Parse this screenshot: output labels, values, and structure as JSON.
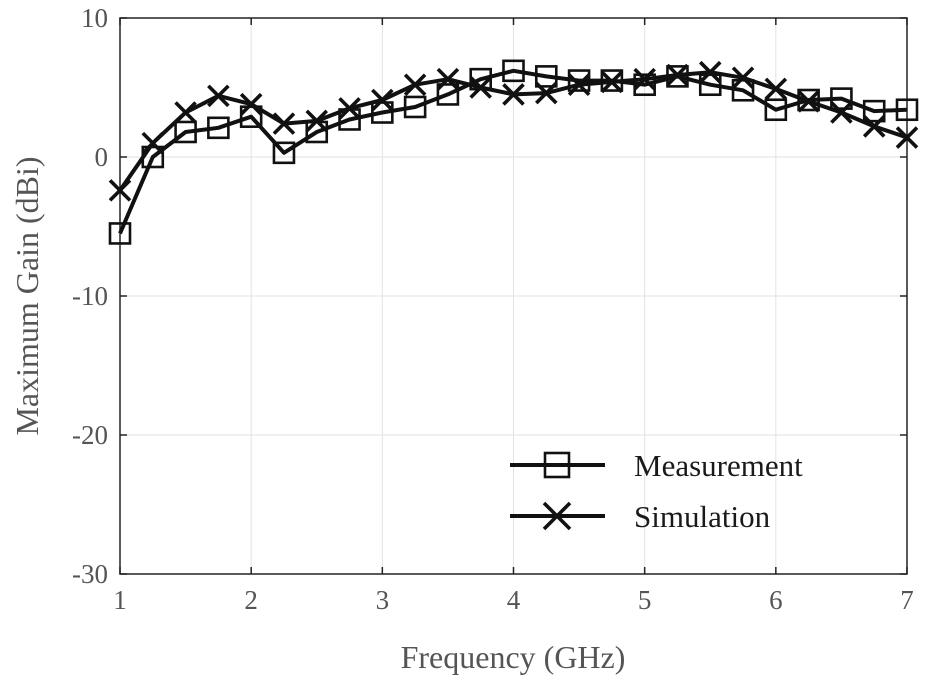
{
  "chart_data": {
    "type": "line",
    "xlabel": "Frequency (GHz)",
    "ylabel": "Maximum Gain (dBi)",
    "xlim": [
      1,
      7
    ],
    "ylim": [
      -30,
      10
    ],
    "xticks": [
      "1",
      "2",
      "3",
      "4",
      "5",
      "6",
      "7"
    ],
    "yticks": [
      "10",
      "0",
      "-10",
      "-20",
      "-30"
    ],
    "grid": true,
    "legend_position": "bottom-right",
    "series": [
      {
        "name": "Measurement",
        "marker": "square",
        "x": [
          1,
          1.25,
          1.5,
          1.75,
          2,
          2.25,
          2.5,
          2.75,
          3,
          3.25,
          3.5,
          3.75,
          4,
          4.25,
          4.5,
          4.75,
          5,
          5.25,
          5.5,
          5.75,
          6,
          6.25,
          6.5,
          6.75,
          7
        ],
        "values": [
          -5.5,
          0,
          1.8,
          2.1,
          2.9,
          0.3,
          1.8,
          2.7,
          3.2,
          3.6,
          4.5,
          5.6,
          6.2,
          5.8,
          5.5,
          5.5,
          5.2,
          5.8,
          5.2,
          4.8,
          3.4,
          4.1,
          4.2,
          3.3,
          3.4
        ]
      },
      {
        "name": "Simulation",
        "marker": "x",
        "x": [
          1,
          1.25,
          1.5,
          1.75,
          2,
          2.25,
          2.5,
          2.75,
          3,
          3.25,
          3.5,
          3.75,
          4,
          4.25,
          4.5,
          4.75,
          5,
          5.25,
          5.5,
          5.75,
          6,
          6.25,
          6.5,
          6.75,
          7
        ],
        "values": [
          -2.4,
          1.0,
          3.2,
          4.4,
          3.8,
          2.4,
          2.6,
          3.5,
          4.1,
          5.2,
          5.6,
          5.0,
          4.5,
          4.6,
          5.2,
          5.4,
          5.6,
          5.9,
          6.1,
          5.7,
          4.9,
          4.0,
          3.2,
          2.2,
          1.4
        ]
      }
    ]
  }
}
